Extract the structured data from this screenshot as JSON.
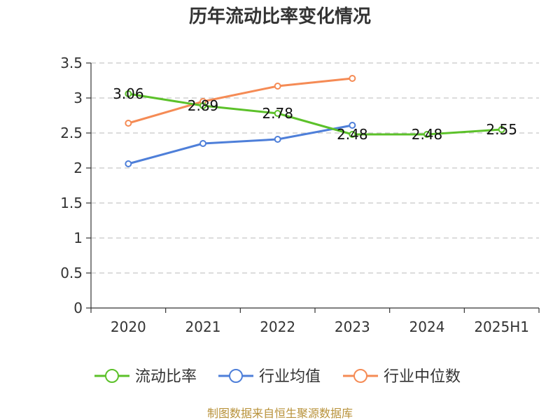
{
  "chart_data": {
    "type": "line",
    "title": "历年流动比率变化情况",
    "categories": [
      "2020",
      "2021",
      "2022",
      "2023",
      "2024",
      "2025H1"
    ],
    "ylim": [
      0,
      3.5
    ],
    "yticks": [
      "0",
      "0.5",
      "1",
      "1.5",
      "2",
      "2.5",
      "3",
      "3.5"
    ],
    "grid": true,
    "legend_position": "bottom",
    "series": [
      {
        "name": "流动比率",
        "color": "#5cc12a",
        "values": [
          3.06,
          2.89,
          2.78,
          2.48,
          2.48,
          2.55
        ],
        "labels": [
          "3.06",
          "2.89",
          "2.78",
          "2.48",
          "2.48",
          "2.55"
        ]
      },
      {
        "name": "行业均值",
        "color": "#4e7fd9",
        "values": [
          2.06,
          2.35,
          2.41,
          2.61,
          null,
          null
        ]
      },
      {
        "name": "行业中位数",
        "color": "#f58b55",
        "values": [
          2.64,
          2.95,
          3.17,
          3.28,
          null,
          null
        ]
      }
    ],
    "source": "制图数据来自恒生聚源数据库"
  }
}
